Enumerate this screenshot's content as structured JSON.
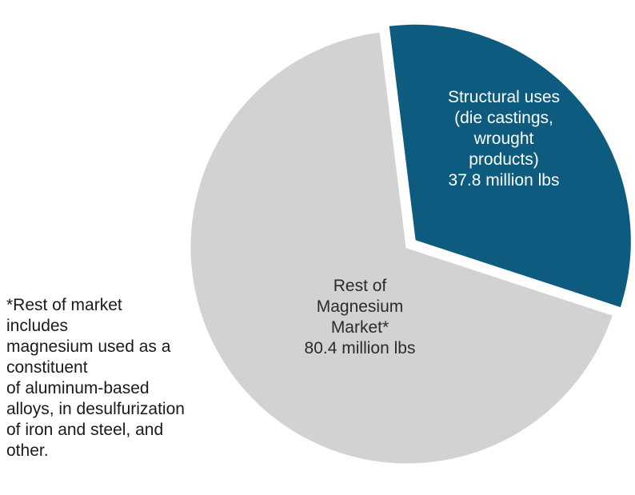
{
  "chart_data": {
    "type": "pie",
    "slices": [
      {
        "name": "Structural uses (die castings, wrought products)",
        "value": 37.8,
        "color": "#0d5c80",
        "label_lines": [
          "Structural uses",
          "(die castings,",
          "wrought",
          "products)",
          "37.8 million lbs"
        ]
      },
      {
        "name": "Rest of Magnesium Market*",
        "value": 80.4,
        "color": "#d2d2d2",
        "label_lines": [
          "Rest of",
          "Magnesium",
          "Market*",
          "80.4 million lbs"
        ]
      }
    ],
    "unit": "million lbs",
    "exploded_slice": "Structural uses (die castings, wrought products)"
  },
  "footnote": {
    "lines": [
      "*Rest of market",
      "includes",
      "magnesium used as a",
      "constituent",
      "of aluminum-based",
      "alloys, in desulfurization",
      "of iron and steel, and",
      "other."
    ]
  }
}
